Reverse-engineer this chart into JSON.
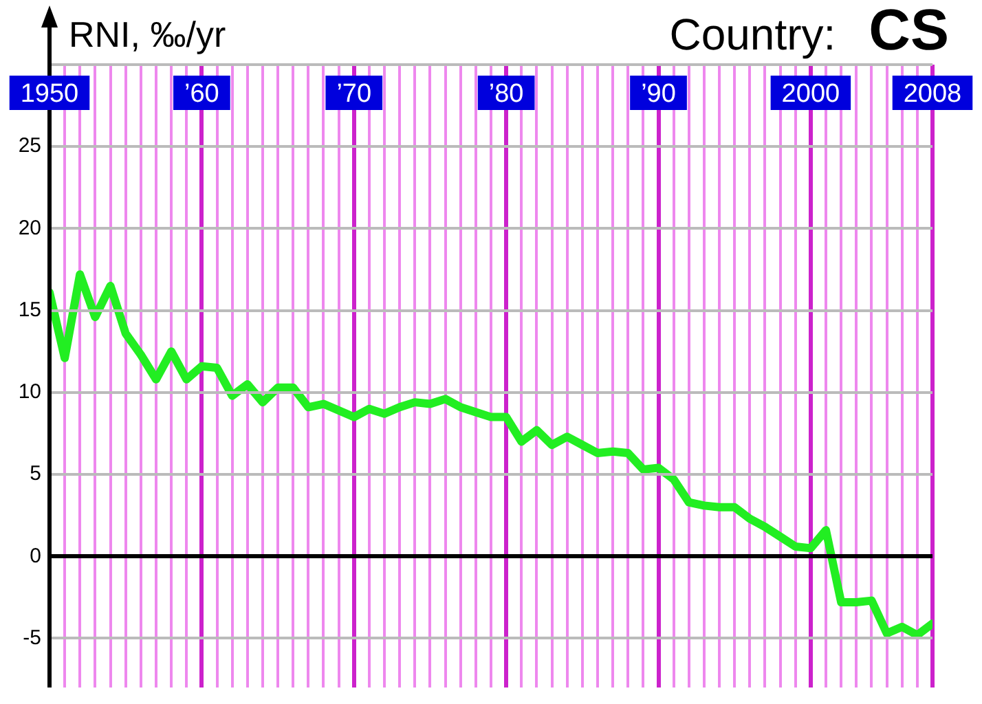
{
  "chart_data": {
    "type": "line",
    "title": "Country:",
    "subtitle": "CS",
    "ylabel": "RNI, ‰/yr",
    "x": [
      1950,
      1951,
      1952,
      1953,
      1954,
      1955,
      1956,
      1957,
      1958,
      1959,
      1960,
      1961,
      1962,
      1963,
      1964,
      1965,
      1966,
      1967,
      1968,
      1969,
      1970,
      1971,
      1972,
      1973,
      1974,
      1975,
      1976,
      1977,
      1978,
      1979,
      1980,
      1981,
      1982,
      1983,
      1984,
      1985,
      1986,
      1987,
      1988,
      1989,
      1990,
      1991,
      1992,
      1993,
      1994,
      1995,
      1996,
      1997,
      1998,
      1999,
      2000,
      2001,
      2002,
      2003,
      2004,
      2005,
      2006,
      2007,
      2008
    ],
    "series": [
      {
        "color": "#22ee22",
        "values": [
          16.1,
          12.1,
          17.2,
          14.6,
          16.5,
          13.6,
          12.3,
          10.8,
          12.5,
          10.8,
          11.6,
          11.5,
          9.8,
          10.5,
          9.4,
          10.3,
          10.3,
          9.1,
          9.3,
          8.9,
          8.5,
          9.0,
          8.7,
          9.1,
          9.4,
          9.3,
          9.6,
          9.1,
          8.8,
          8.5,
          8.5,
          7.0,
          7.7,
          6.8,
          7.3,
          6.8,
          6.3,
          6.4,
          6.3,
          5.3,
          5.4,
          4.7,
          3.3,
          3.1,
          3.0,
          3.0,
          2.3,
          1.8,
          1.2,
          0.6,
          0.5,
          1.6,
          -2.8,
          -2.8,
          -2.7,
          -4.7,
          -4.3,
          -4.8,
          -4.1
        ]
      }
    ],
    "xlim": [
      1950,
      2008
    ],
    "xticks": [
      {
        "value": 1950,
        "label": "1950"
      },
      {
        "value": 1951,
        "label": null
      },
      {
        "value": 1952,
        "label": null
      },
      {
        "value": 1953,
        "label": null
      },
      {
        "value": 1954,
        "label": null
      },
      {
        "value": 1955,
        "label": null
      },
      {
        "value": 1956,
        "label": null
      },
      {
        "value": 1957,
        "label": null
      },
      {
        "value": 1958,
        "label": null
      },
      {
        "value": 1959,
        "label": null
      },
      {
        "value": 1960,
        "label": "’60"
      },
      {
        "value": 1961,
        "label": null
      },
      {
        "value": 1962,
        "label": null
      },
      {
        "value": 1963,
        "label": null
      },
      {
        "value": 1964,
        "label": null
      },
      {
        "value": 1965,
        "label": null
      },
      {
        "value": 1966,
        "label": null
      },
      {
        "value": 1967,
        "label": null
      },
      {
        "value": 1968,
        "label": null
      },
      {
        "value": 1969,
        "label": null
      },
      {
        "value": 1970,
        "label": "’70"
      },
      {
        "value": 1971,
        "label": null
      },
      {
        "value": 1972,
        "label": null
      },
      {
        "value": 1973,
        "label": null
      },
      {
        "value": 1974,
        "label": null
      },
      {
        "value": 1975,
        "label": null
      },
      {
        "value": 1976,
        "label": null
      },
      {
        "value": 1977,
        "label": null
      },
      {
        "value": 1978,
        "label": null
      },
      {
        "value": 1979,
        "label": null
      },
      {
        "value": 1980,
        "label": "’80"
      },
      {
        "value": 1981,
        "label": null
      },
      {
        "value": 1982,
        "label": null
      },
      {
        "value": 1983,
        "label": null
      },
      {
        "value": 1984,
        "label": null
      },
      {
        "value": 1985,
        "label": null
      },
      {
        "value": 1986,
        "label": null
      },
      {
        "value": 1987,
        "label": null
      },
      {
        "value": 1988,
        "label": null
      },
      {
        "value": 1989,
        "label": null
      },
      {
        "value": 1990,
        "label": "’90"
      },
      {
        "value": 1991,
        "label": null
      },
      {
        "value": 1992,
        "label": null
      },
      {
        "value": 1993,
        "label": null
      },
      {
        "value": 1994,
        "label": null
      },
      {
        "value": 1995,
        "label": null
      },
      {
        "value": 1996,
        "label": null
      },
      {
        "value": 1997,
        "label": null
      },
      {
        "value": 1998,
        "label": null
      },
      {
        "value": 1999,
        "label": null
      },
      {
        "value": 2000,
        "label": "2000"
      },
      {
        "value": 2001,
        "label": null
      },
      {
        "value": 2002,
        "label": null
      },
      {
        "value": 2003,
        "label": null
      },
      {
        "value": 2004,
        "label": null
      },
      {
        "value": 2005,
        "label": null
      },
      {
        "value": 2006,
        "label": null
      },
      {
        "value": 2007,
        "label": null
      },
      {
        "value": 2008,
        "label": "2008"
      }
    ],
    "ylim": [
      -8,
      30
    ],
    "yticks": [
      -5,
      0,
      5,
      10,
      15,
      20,
      25,
      {
        "value": 30,
        "label": null
      }
    ],
    "grid": true,
    "marker": "none",
    "line_style": "solid",
    "legend": false
  }
}
